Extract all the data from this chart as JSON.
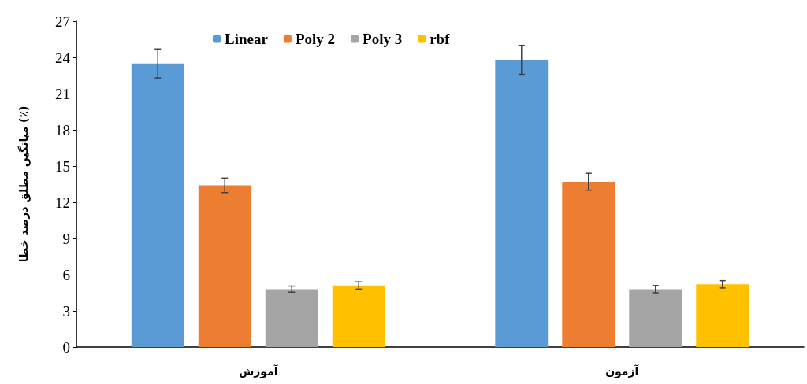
{
  "chart_data": {
    "type": "bar",
    "ylabel": "میانگین مطلق درصد خطا (٪)",
    "categories": [
      "آموزش",
      "آزمون"
    ],
    "series": [
      {
        "name": "Linear",
        "color": "#5b9bd5",
        "values": [
          23.5,
          23.8
        ],
        "errors": [
          1.2,
          1.2
        ]
      },
      {
        "name": "Poly 2",
        "color": "#ed7d31",
        "values": [
          13.4,
          13.7
        ],
        "errors": [
          0.6,
          0.7
        ]
      },
      {
        "name": "Poly 3",
        "color": "#a5a5a5",
        "values": [
          4.8,
          4.8
        ],
        "errors": [
          0.25,
          0.3
        ]
      },
      {
        "name": "rbf",
        "color": "#ffc000",
        "values": [
          5.1,
          5.2
        ],
        "errors": [
          0.3,
          0.3
        ]
      }
    ],
    "ylim": [
      0,
      27
    ],
    "yticks": [
      0,
      3,
      6,
      9,
      12,
      15,
      18,
      21,
      24,
      27
    ],
    "grid": false,
    "legend": "top"
  }
}
